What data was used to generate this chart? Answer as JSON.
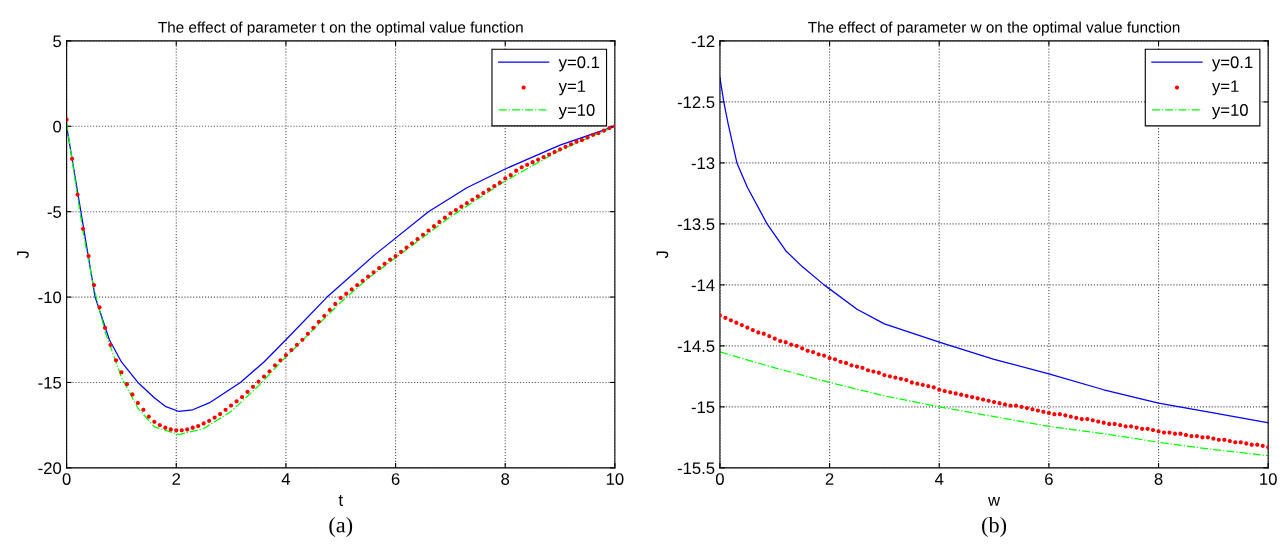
{
  "chart_data": [
    {
      "type": "line",
      "title": "The effect of parameter t on the optimal value function",
      "xlabel": "t",
      "ylabel": "J",
      "annotations": [
        "(a)"
      ],
      "xlim": [
        0,
        10
      ],
      "ylim": [
        -20,
        5
      ],
      "xticks": [
        0,
        2,
        4,
        6,
        8,
        10
      ],
      "yticks": [
        -20,
        -15,
        -10,
        -5,
        0,
        5
      ],
      "grid": true,
      "legend": "top right",
      "series": [
        {
          "name": "y=0.1",
          "line_style": "solid",
          "color": "#0000ff",
          "x": [
            0,
            0.1,
            0.26,
            0.52,
            0.78,
            1.0,
            1.3,
            1.6,
            1.8,
            2.05,
            2.3,
            2.6,
            3.17,
            3.6,
            4.0,
            4.75,
            5.63,
            6.6,
            7.3,
            8.0,
            9.0,
            10
          ],
          "values": [
            0,
            -1.9,
            -5,
            -10,
            -12.5,
            -13.8,
            -15,
            -15.9,
            -16.4,
            -16.7,
            -16.6,
            -16.2,
            -15,
            -13.8,
            -12.5,
            -10,
            -7.5,
            -5,
            -3.6,
            -2.5,
            -1.1,
            0
          ]
        },
        {
          "name": "y=1",
          "type": "scatter",
          "marker": "circle",
          "color": "#ff0000",
          "x": [
            0,
            0.1,
            0.2,
            0.3,
            0.4,
            0.5,
            0.6,
            0.7,
            0.8,
            0.9,
            1.0,
            1.1,
            1.2,
            1.3,
            1.4,
            1.5,
            1.6,
            1.7,
            1.8,
            1.9,
            2.0,
            2.1,
            2.2,
            2.3,
            2.4,
            2.5,
            2.6,
            2.7,
            2.8,
            2.9,
            3.0,
            3.1,
            3.2,
            3.3,
            3.4,
            3.5,
            3.6,
            3.7,
            3.8,
            3.9,
            4.0,
            4.1,
            4.2,
            4.3,
            4.4,
            4.5,
            4.6,
            4.7,
            4.8,
            4.9,
            5.0,
            5.1,
            5.2,
            5.3,
            5.4,
            5.5,
            5.6,
            5.7,
            5.8,
            5.9,
            6.0,
            6.1,
            6.2,
            6.3,
            6.4,
            6.5,
            6.6,
            6.7,
            6.8,
            6.9,
            7.0,
            7.1,
            7.2,
            7.3,
            7.4,
            7.5,
            7.6,
            7.7,
            7.8,
            7.9,
            8.0,
            8.1,
            8.2,
            8.3,
            8.4,
            8.5,
            8.6,
            8.7,
            8.8,
            8.9,
            9.0,
            9.1,
            9.2,
            9.3,
            9.4,
            9.5,
            9.6,
            9.7,
            9.8,
            9.9,
            10.0
          ],
          "values": [
            0.4,
            -1.9,
            -4.0,
            -6.0,
            -7.6,
            -9.3,
            -10.6,
            -11.8,
            -12.8,
            -13.7,
            -14.4,
            -15.1,
            -15.7,
            -16.2,
            -16.6,
            -17.0,
            -17.3,
            -17.5,
            -17.65,
            -17.75,
            -17.8,
            -17.8,
            -17.75,
            -17.65,
            -17.55,
            -17.4,
            -17.25,
            -17.05,
            -16.85,
            -16.6,
            -16.35,
            -16.1,
            -15.85,
            -15.55,
            -15.25,
            -14.95,
            -14.65,
            -14.35,
            -14.0,
            -13.7,
            -13.4,
            -13.1,
            -12.8,
            -12.5,
            -12.15,
            -11.8,
            -11.45,
            -11.1,
            -10.75,
            -10.4,
            -10.05,
            -9.8,
            -9.55,
            -9.3,
            -9.05,
            -8.8,
            -8.55,
            -8.3,
            -8.05,
            -7.8,
            -7.6,
            -7.35,
            -7.1,
            -6.85,
            -6.6,
            -6.35,
            -6.1,
            -5.85,
            -5.6,
            -5.35,
            -5.1,
            -4.9,
            -4.7,
            -4.5,
            -4.3,
            -4.1,
            -3.9,
            -3.7,
            -3.5,
            -3.3,
            -3.05,
            -2.85,
            -2.6,
            -2.4,
            -2.25,
            -2.1,
            -1.95,
            -1.8,
            -1.65,
            -1.5,
            -1.35,
            -1.2,
            -1.05,
            -0.9,
            -0.8,
            -0.65,
            -0.5,
            -0.4,
            -0.25,
            -0.1,
            0
          ]
        },
        {
          "name": "y=10",
          "line_style": "dashdot",
          "color": "#00ff00",
          "x": [
            0,
            0.1,
            0.3,
            0.5,
            0.7,
            1.0,
            1.3,
            1.6,
            2.05,
            2.5,
            3.0,
            3.5,
            4.0,
            4.5,
            5.0,
            5.5,
            6.0,
            7.0,
            8.0,
            9.0,
            10
          ],
          "values": [
            0.2,
            -2,
            -6.2,
            -9.5,
            -12,
            -14.7,
            -16.5,
            -17.6,
            -18.05,
            -17.7,
            -16.7,
            -15.2,
            -13.5,
            -11.9,
            -10.3,
            -8.9,
            -7.7,
            -5.3,
            -3.2,
            -1.4,
            0
          ]
        }
      ]
    },
    {
      "type": "line",
      "title": "The effect of parameter w on the optimal value function",
      "xlabel": "w",
      "ylabel": "J",
      "annotations": [
        "(b)"
      ],
      "xlim": [
        0,
        10
      ],
      "ylim": [
        -15.5,
        -12
      ],
      "xticks": [
        0,
        2,
        4,
        6,
        8,
        10
      ],
      "yticks": [
        -15.5,
        -15,
        -14.5,
        -14,
        -13.5,
        -13,
        -12.5,
        -12
      ],
      "grid": true,
      "legend": "top right",
      "series": [
        {
          "name": "y=0.1",
          "line_style": "solid",
          "color": "#0000ff",
          "x": [
            0,
            0.07,
            0.15,
            0.31,
            0.5,
            0.86,
            1.2,
            1.5,
            1.9,
            2.5,
            3,
            4,
            5,
            6,
            7,
            8,
            9,
            10
          ],
          "values": [
            -12.3,
            -12.5,
            -12.68,
            -13.0,
            -13.2,
            -13.5,
            -13.72,
            -13.85,
            -14.0,
            -14.2,
            -14.32,
            -14.47,
            -14.61,
            -14.73,
            -14.86,
            -14.97,
            -15.05,
            -15.13
          ]
        },
        {
          "name": "y=1",
          "type": "scatter",
          "marker": "circle",
          "color": "#ff0000",
          "x": [
            0,
            0.1,
            0.2,
            0.3,
            0.4,
            0.5,
            0.6,
            0.7,
            0.8,
            0.9,
            1.0,
            1.1,
            1.2,
            1.3,
            1.4,
            1.5,
            1.6,
            1.7,
            1.8,
            1.9,
            2.0,
            2.1,
            2.2,
            2.3,
            2.4,
            2.5,
            2.6,
            2.7,
            2.8,
            2.9,
            3.0,
            3.1,
            3.2,
            3.3,
            3.4,
            3.5,
            3.6,
            3.7,
            3.8,
            3.9,
            4.0,
            4.1,
            4.2,
            4.3,
            4.4,
            4.5,
            4.6,
            4.7,
            4.8,
            4.9,
            5.0,
            5.1,
            5.2,
            5.3,
            5.4,
            5.5,
            5.6,
            5.7,
            5.8,
            5.9,
            6.0,
            6.1,
            6.2,
            6.3,
            6.4,
            6.5,
            6.6,
            6.7,
            6.8,
            6.9,
            7.0,
            7.1,
            7.2,
            7.3,
            7.4,
            7.5,
            7.6,
            7.7,
            7.8,
            7.9,
            8.0,
            8.1,
            8.2,
            8.3,
            8.4,
            8.5,
            8.6,
            8.7,
            8.8,
            8.9,
            9.0,
            9.1,
            9.2,
            9.3,
            9.4,
            9.5,
            9.6,
            9.7,
            9.8,
            9.9,
            10.0
          ],
          "values": [
            -14.25,
            -14.27,
            -14.29,
            -14.31,
            -14.33,
            -14.35,
            -14.37,
            -14.39,
            -14.4,
            -14.42,
            -14.44,
            -14.46,
            -14.47,
            -14.49,
            -14.5,
            -14.52,
            -14.54,
            -14.55,
            -14.57,
            -14.58,
            -14.6,
            -14.61,
            -14.63,
            -14.64,
            -14.66,
            -14.67,
            -14.68,
            -14.7,
            -14.71,
            -14.72,
            -14.74,
            -14.75,
            -14.76,
            -14.77,
            -14.78,
            -14.8,
            -14.81,
            -14.82,
            -14.83,
            -14.84,
            -14.86,
            -14.87,
            -14.88,
            -14.89,
            -14.9,
            -14.91,
            -14.92,
            -14.93,
            -14.94,
            -14.95,
            -14.96,
            -14.97,
            -14.98,
            -14.99,
            -14.99,
            -15.0,
            -15.01,
            -15.02,
            -15.03,
            -15.04,
            -15.05,
            -15.06,
            -15.06,
            -15.07,
            -15.08,
            -15.09,
            -15.1,
            -15.1,
            -15.11,
            -15.12,
            -15.13,
            -15.14,
            -15.14,
            -15.15,
            -15.16,
            -15.16,
            -15.17,
            -15.18,
            -15.18,
            -15.19,
            -15.2,
            -15.21,
            -15.21,
            -15.22,
            -15.22,
            -15.23,
            -15.24,
            -15.24,
            -15.25,
            -15.25,
            -15.26,
            -15.27,
            -15.27,
            -15.28,
            -15.29,
            -15.29,
            -15.3,
            -15.31,
            -15.31,
            -15.32,
            -15.33
          ]
        },
        {
          "name": "y=10",
          "line_style": "dashdot",
          "color": "#00ff00",
          "x": [
            0,
            1,
            2,
            3,
            4,
            5,
            6,
            7,
            8,
            9,
            10
          ],
          "values": [
            -14.55,
            -14.68,
            -14.8,
            -14.91,
            -15.0,
            -15.08,
            -15.16,
            -15.22,
            -15.29,
            -15.35,
            -15.4
          ]
        }
      ]
    }
  ]
}
